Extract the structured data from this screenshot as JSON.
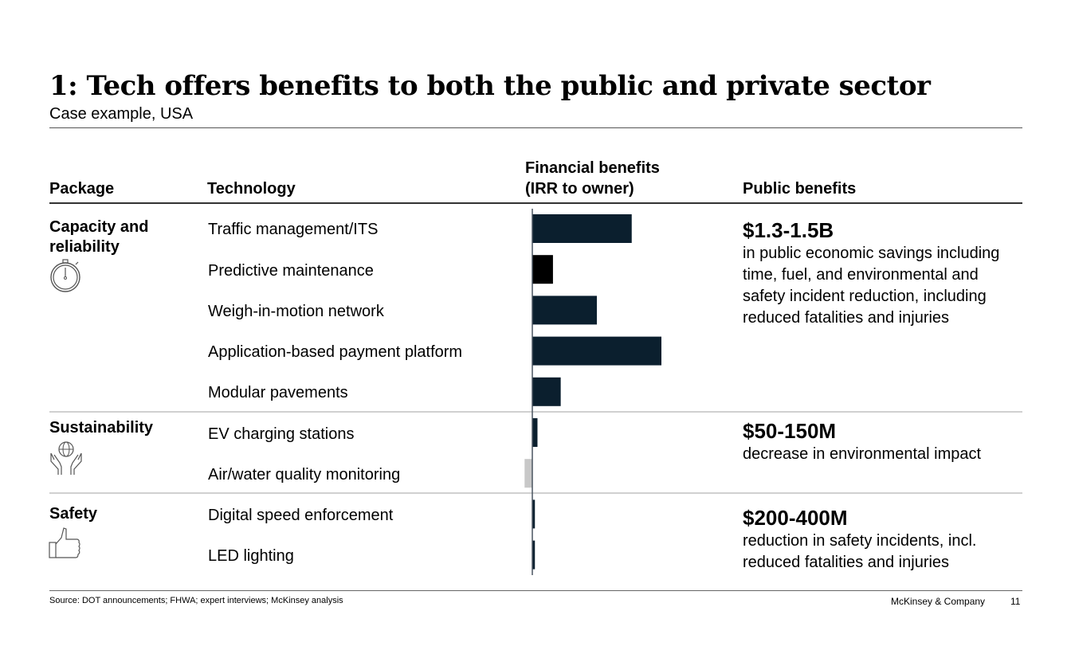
{
  "header": {
    "title": "1: Tech offers benefits to both the public and private sector",
    "subtitle": "Case example, USA"
  },
  "columns": {
    "package": "Package",
    "technology": "Technology",
    "financial_line1": "Financial benefits",
    "financial_line2": "(IRR to owner)",
    "public": "Public benefits"
  },
  "packages": [
    {
      "name": "Capacity and reliability",
      "icon": "stopwatch-icon",
      "public_value": "$1.3-1.5B",
      "public_desc": "in public economic savings including time, fuel, and environmental and safety incident reduction, including reduced fatalities and injuries"
    },
    {
      "name": "Sustainability",
      "icon": "hands-globe-icon",
      "public_value": "$50-150M",
      "public_desc": "decrease in environmental impact"
    },
    {
      "name": "Safety",
      "icon": "thumbs-up-icon",
      "public_value": "$200-400M",
      "public_desc": "reduction in safety incidents, incl. reduced fatalities and injuries"
    }
  ],
  "technologies": [
    "Traffic management/ITS",
    "Predictive maintenance",
    "Weigh-in-motion network",
    "Application-based payment platform",
    "Modular pavements",
    "EV charging stations",
    "Air/water quality monitoring",
    "Digital speed enforcement",
    "LED lighting"
  ],
  "chart_data": {
    "type": "bar",
    "orientation": "horizontal",
    "title": "Financial benefits (IRR to owner)",
    "xlabel": "",
    "ylabel": "",
    "note": "No axis scale shown; values are relative bar lengths (largest = 1.0)",
    "categories": [
      "Traffic management/ITS",
      "Predictive maintenance",
      "Weigh-in-motion network",
      "Application-based payment platform",
      "Modular pavements",
      "EV charging stations",
      "Air/water quality monitoring",
      "Digital speed enforcement",
      "LED lighting"
    ],
    "values": [
      0.77,
      0.16,
      0.5,
      1.0,
      0.22,
      0.04,
      -0.06,
      0.02,
      0.02
    ],
    "colors": [
      "#0b1f2e",
      "#000000",
      "#0b1f2e",
      "#0b1f2e",
      "#0b1f2e",
      "#0b1f2e",
      "#c8c8c8",
      "#0b1f2e",
      "#0b1f2e"
    ],
    "xlim": [
      -0.2,
      1.5
    ],
    "grid": false
  },
  "footer": {
    "source": "Source: DOT announcements; FHWA; expert interviews; McKinsey analysis",
    "brand": "McKinsey & Company",
    "page": "11"
  }
}
